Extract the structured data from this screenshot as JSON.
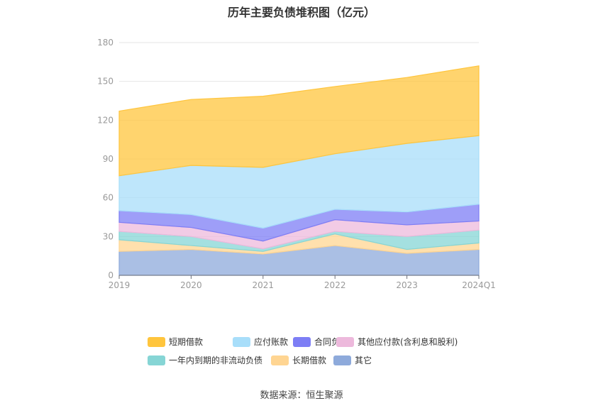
{
  "chart_data": {
    "type": "area",
    "stacked": true,
    "title": "历年主要负债堆积图（亿元）",
    "source": "数据来源：恒生聚源",
    "categories": [
      "2019",
      "2020",
      "2021",
      "2022",
      "2023",
      "2024Q1"
    ],
    "ylim": [
      0,
      180
    ],
    "yticks": [
      "0",
      "30",
      "60",
      "90",
      "120",
      "150",
      "180"
    ],
    "grid": true,
    "legend_position": "bottom",
    "series": [
      {
        "name": "其它",
        "color": "#8eaadb",
        "values": [
          18.5,
          20,
          16.5,
          23,
          17,
          20
        ]
      },
      {
        "name": "长期借款",
        "color": "#ffd592",
        "values": [
          9,
          3,
          2,
          9,
          3,
          5
        ]
      },
      {
        "name": "一年内到期的非流动负债",
        "color": "#86d5d5",
        "values": [
          6.5,
          7,
          2,
          2,
          10,
          10
        ]
      },
      {
        "name": "其他应付款(含利息和股利)",
        "color": "#edb9dc",
        "values": [
          7,
          7,
          6,
          9,
          9,
          7
        ]
      },
      {
        "name": "合同负债",
        "color": "#7d7ef5",
        "values": [
          9,
          10,
          10,
          8,
          10,
          13
        ]
      },
      {
        "name": "应付账款",
        "color": "#a8defa",
        "values": [
          27,
          38,
          47,
          43,
          53,
          53
        ]
      },
      {
        "name": "短期借款",
        "color": "#ffc53d",
        "values": [
          50,
          51,
          55,
          52,
          51,
          54
        ]
      }
    ],
    "legend_order": [
      "短期借款",
      "应付账款",
      "合同负债",
      "其他应付款(含利息和股利)",
      "一年内到期的非流动负债",
      "长期借款",
      "其它"
    ]
  }
}
